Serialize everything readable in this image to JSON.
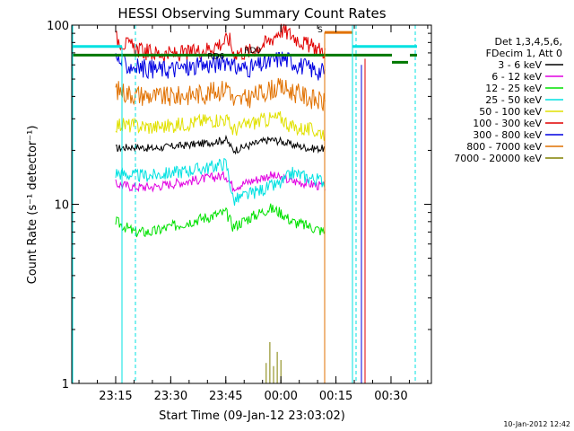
{
  "chart_data": {
    "type": "line",
    "title": "HESSI Observing Summary Count Rates",
    "xlabel": "Start Time (09-Jan-12 23:03:02)",
    "ylabel": "Count Rate (s⁻¹ detector⁻¹)",
    "footer": "10-Jan-2012 12:42",
    "y_scale": "log",
    "ylim": [
      1,
      100
    ],
    "y_ticks": [
      {
        "value": 1,
        "label": "1"
      },
      {
        "value": 10,
        "label": "10"
      },
      {
        "value": 100,
        "label": "100"
      }
    ],
    "x_ticks": [
      {
        "t": "23:15",
        "label": "23:15"
      },
      {
        "t": "23:30",
        "label": "23:30"
      },
      {
        "t": "23:45",
        "label": "23:45"
      },
      {
        "t": "24:00",
        "label": "00:00"
      },
      {
        "t": "24:15",
        "label": "00:15"
      },
      {
        "t": "24:30",
        "label": "00:30"
      }
    ],
    "xlim": [
      "23:03:02",
      "24:41:00"
    ],
    "legend": {
      "placement": "right",
      "header": [
        "Det 1,3,4,5,6,",
        "FDecim 1, Att 0"
      ]
    },
    "series": [
      {
        "name": "3 - 6 keV",
        "color": "#000000",
        "data": [
          [
            "23:15:00",
            20.5
          ],
          [
            "23:20:00",
            21
          ],
          [
            "23:25:00",
            20.5
          ],
          [
            "23:30:00",
            21
          ],
          [
            "23:35:00",
            21.5
          ],
          [
            "23:40:00",
            22
          ],
          [
            "23:45:00",
            23
          ],
          [
            "23:47:00",
            20
          ],
          [
            "23:52:00",
            21.5
          ],
          [
            "23:57:00",
            23
          ],
          [
            "24:00:00",
            22.5
          ],
          [
            "24:03:00",
            21.5
          ],
          [
            "24:08:00",
            20.5
          ],
          [
            "24:12:00",
            20.5
          ]
        ]
      },
      {
        "name": "6 - 12 keV",
        "color": "#e100e1",
        "data": [
          [
            "23:15:00",
            13
          ],
          [
            "23:20:00",
            12.5
          ],
          [
            "23:25:00",
            12.5
          ],
          [
            "23:30:00",
            13
          ],
          [
            "23:35:00",
            13.5
          ],
          [
            "23:40:00",
            14
          ],
          [
            "23:45:00",
            14.5
          ],
          [
            "23:47:00",
            12.5
          ],
          [
            "23:52:00",
            13.5
          ],
          [
            "23:57:00",
            14.5
          ],
          [
            "24:00:00",
            14
          ],
          [
            "24:03:00",
            13.5
          ],
          [
            "24:08:00",
            13
          ],
          [
            "24:12:00",
            12.5
          ]
        ]
      },
      {
        "name": "12 - 25 keV",
        "color": "#00e100",
        "data": [
          [
            "23:15:00",
            8
          ],
          [
            "23:20:00",
            7
          ],
          [
            "23:25:00",
            7
          ],
          [
            "23:30:00",
            7.5
          ],
          [
            "23:35:00",
            8
          ],
          [
            "23:40:00",
            8.5
          ],
          [
            "23:45:00",
            9
          ],
          [
            "23:47:00",
            7.5
          ],
          [
            "23:52:00",
            8.5
          ],
          [
            "23:57:00",
            9.5
          ],
          [
            "24:00:00",
            9
          ],
          [
            "24:03:00",
            8
          ],
          [
            "24:08:00",
            7.5
          ],
          [
            "24:12:00",
            7
          ]
        ]
      },
      {
        "name": "25 - 50 keV",
        "color": "#00e1e1",
        "data": [
          [
            "23:15:00",
            15
          ],
          [
            "23:20:00",
            14.5
          ],
          [
            "23:25:00",
            14.5
          ],
          [
            "23:30:00",
            15
          ],
          [
            "23:35:00",
            15.5
          ],
          [
            "23:40:00",
            16
          ],
          [
            "23:45:00",
            17
          ],
          [
            "23:47:00",
            10.5
          ],
          [
            "23:52:00",
            11.5
          ],
          [
            "23:57:00",
            12.5
          ],
          [
            "24:00:00",
            13
          ],
          [
            "24:03:00",
            15
          ],
          [
            "24:08:00",
            14
          ],
          [
            "24:12:00",
            13.5
          ]
        ]
      },
      {
        "name": "50 - 100 keV",
        "color": "#e1e100",
        "data": [
          [
            "23:15:00",
            28
          ],
          [
            "23:20:00",
            27.5
          ],
          [
            "23:25:00",
            27
          ],
          [
            "23:30:00",
            27.5
          ],
          [
            "23:35:00",
            28.5
          ],
          [
            "23:40:00",
            29.5
          ],
          [
            "23:45:00",
            30
          ],
          [
            "23:47:00",
            26
          ],
          [
            "23:52:00",
            28.5
          ],
          [
            "23:57:00",
            30
          ],
          [
            "24:00:00",
            30.5
          ],
          [
            "24:03:00",
            27
          ],
          [
            "24:08:00",
            26
          ],
          [
            "24:12:00",
            25
          ]
        ]
      },
      {
        "name": "100 - 300 keV",
        "color": "#e10000",
        "data": [
          [
            "23:15:00",
            85
          ],
          [
            "23:18:00",
            78
          ],
          [
            "23:22:00",
            72
          ],
          [
            "23:26:00",
            70
          ],
          [
            "23:30:00",
            69
          ],
          [
            "23:35:00",
            70
          ],
          [
            "23:40:00",
            74
          ],
          [
            "23:44:00",
            80
          ],
          [
            "23:46:00",
            84
          ],
          [
            "23:47:00",
            70
          ],
          [
            "23:52:00",
            72
          ],
          [
            "23:57:00",
            82
          ],
          [
            "24:00:00",
            95
          ],
          [
            "24:03:00",
            88
          ],
          [
            "24:07:00",
            78
          ],
          [
            "24:10:00",
            74
          ],
          [
            "24:12:00",
            72
          ]
        ]
      },
      {
        "name": "300 - 800 keV",
        "color": "#0000e1",
        "data": [
          [
            "23:15:00",
            65
          ],
          [
            "23:18:00",
            60
          ],
          [
            "23:22:00",
            58
          ],
          [
            "23:26:00",
            57
          ],
          [
            "23:30:00",
            57
          ],
          [
            "23:35:00",
            58
          ],
          [
            "23:40:00",
            60
          ],
          [
            "23:44:00",
            62
          ],
          [
            "23:46:00",
            65
          ],
          [
            "23:47:00",
            58
          ],
          [
            "23:52:00",
            58
          ],
          [
            "23:57:00",
            62
          ],
          [
            "24:00:00",
            66
          ],
          [
            "24:03:00",
            63
          ],
          [
            "24:07:00",
            58
          ],
          [
            "24:10:00",
            56
          ],
          [
            "24:12:00",
            55
          ]
        ]
      },
      {
        "name": "800 - 7000 keV",
        "color": "#e17100",
        "data": [
          [
            "23:15:00",
            44
          ],
          [
            "23:18:00",
            42
          ],
          [
            "23:22:00",
            41
          ],
          [
            "23:26:00",
            40
          ],
          [
            "23:30:00",
            40
          ],
          [
            "23:35:00",
            41
          ],
          [
            "23:40:00",
            42
          ],
          [
            "23:44:00",
            44
          ],
          [
            "23:46:00",
            46
          ],
          [
            "23:47:00",
            37
          ],
          [
            "23:52:00",
            40
          ],
          [
            "23:57:00",
            44
          ],
          [
            "24:00:00",
            45
          ],
          [
            "24:03:00",
            43
          ],
          [
            "24:07:00",
            40
          ],
          [
            "24:10:00",
            38
          ],
          [
            "24:12:00",
            37
          ]
        ]
      },
      {
        "name": "7000 - 20000 keV",
        "color": "#808000",
        "data": [
          [
            "23:56:00",
            1.3
          ],
          [
            "23:57:00",
            1.7
          ],
          [
            "23:58:00",
            1.25
          ],
          [
            "23:59:00",
            1.5
          ],
          [
            "24:00:00",
            1.35
          ]
        ]
      }
    ],
    "annotations": [
      {
        "text": "RD6",
        "t": "23:40",
        "y": 65,
        "color": "#007800"
      },
      {
        "text": "RD0",
        "t": "23:50",
        "y": 70,
        "color": "#007800"
      },
      {
        "text": "S",
        "t": "24:10",
        "y": 91,
        "color": "#e17100"
      }
    ]
  }
}
